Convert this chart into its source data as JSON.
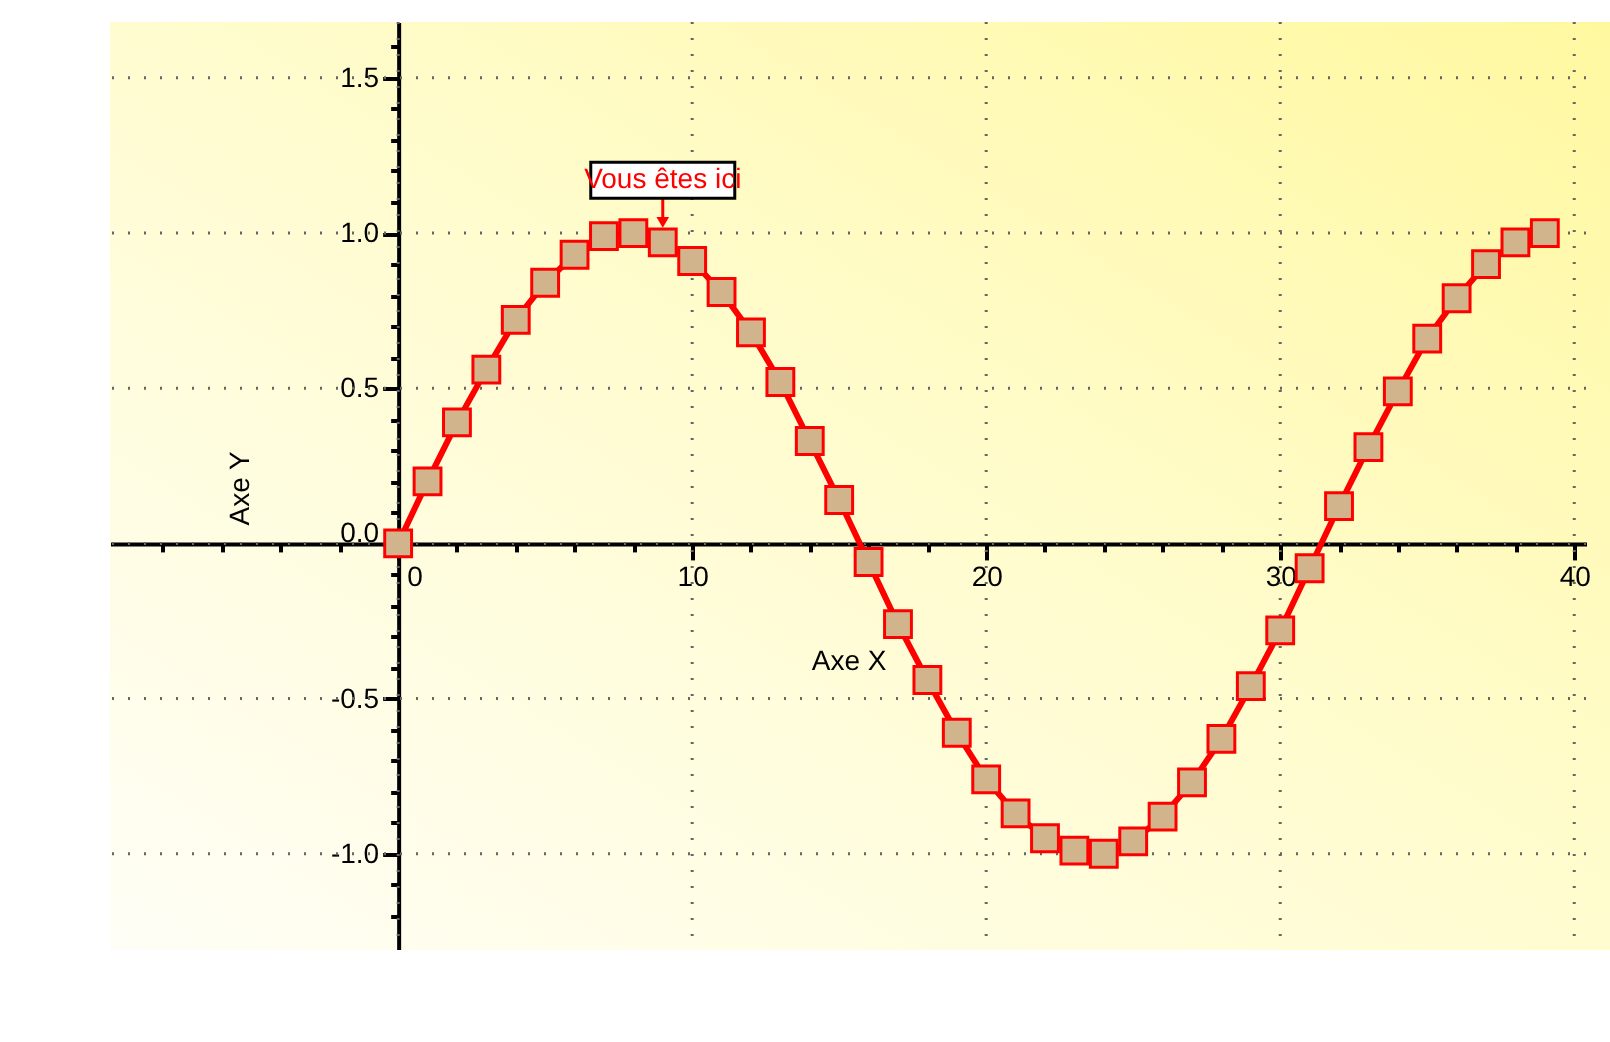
{
  "chart_data": {
    "type": "line",
    "xlabel": "Axe X",
    "ylabel": "Axe Y",
    "x": [
      0,
      1,
      2,
      3,
      4,
      5,
      6,
      7,
      8,
      9,
      10,
      11,
      12,
      13,
      14,
      15,
      16,
      17,
      18,
      19,
      20,
      21,
      22,
      23,
      24,
      25,
      26,
      27,
      28,
      29,
      30,
      31,
      32,
      33,
      34,
      35,
      36,
      37,
      38,
      39
    ],
    "series": [
      {
        "color": "#ff0000",
        "values": [
          0,
          0.2,
          0.39,
          0.56,
          0.72,
          0.84,
          0.93,
          0.99,
          1.0,
          0.97,
          0.91,
          0.81,
          0.68,
          0.52,
          0.33,
          0.14,
          -0.06,
          -0.26,
          -0.44,
          -0.61,
          -0.76,
          -0.87,
          -0.95,
          -0.99,
          -1.0,
          -0.96,
          -0.88,
          -0.77,
          -0.63,
          -0.46,
          -0.28,
          -0.08,
          0.12,
          0.31,
          0.49,
          0.66,
          0.79,
          0.9,
          0.97,
          1.0
        ]
      }
    ],
    "marker": "square",
    "xlim": [
      -9.8,
      40.4
    ],
    "ylim": [
      -1.31,
      1.68
    ],
    "xticks": [
      {
        "value": -8,
        "label": null
      },
      {
        "value": -6,
        "label": null
      },
      {
        "value": -4,
        "label": null
      },
      {
        "value": -2,
        "label": null
      },
      0,
      {
        "value": 2,
        "label": null
      },
      {
        "value": 4,
        "label": null
      },
      {
        "value": 6,
        "label": null
      },
      {
        "value": 8,
        "label": null
      },
      10,
      {
        "value": 12,
        "label": null
      },
      {
        "value": 14,
        "label": null
      },
      {
        "value": 16,
        "label": null
      },
      {
        "value": 18,
        "label": null
      },
      20,
      {
        "value": 22,
        "label": null
      },
      {
        "value": 24,
        "label": null
      },
      {
        "value": 26,
        "label": null
      },
      {
        "value": 28,
        "label": null
      },
      30,
      {
        "value": 32,
        "label": null
      },
      {
        "value": 34,
        "label": null
      },
      {
        "value": 36,
        "label": null
      },
      {
        "value": 38,
        "label": null
      },
      40
    ],
    "yticks": [
      {
        "value": -1.2,
        "label": null
      },
      {
        "value": -1.1,
        "label": null
      },
      {
        "value": -1,
        "label": "-1.0"
      },
      {
        "value": -0.9,
        "label": null
      },
      {
        "value": -0.8,
        "label": null
      },
      {
        "value": -0.7,
        "label": null
      },
      {
        "value": -0.6,
        "label": null
      },
      {
        "value": -0.5,
        "label": "-0.5"
      },
      {
        "value": -0.4,
        "label": null
      },
      {
        "value": -0.3,
        "label": null
      },
      {
        "value": -0.2,
        "label": null
      },
      {
        "value": -0.1,
        "label": null
      },
      {
        "value": 0,
        "label": "0.0"
      },
      {
        "value": 0.1,
        "label": null
      },
      {
        "value": 0.2,
        "label": null
      },
      {
        "value": 0.3,
        "label": null
      },
      {
        "value": 0.4,
        "label": null
      },
      {
        "value": 0.5,
        "label": "0.5"
      },
      {
        "value": 0.6,
        "label": null
      },
      {
        "value": 0.7,
        "label": null
      },
      {
        "value": 0.8,
        "label": null
      },
      {
        "value": 0.9,
        "label": null
      },
      {
        "value": 1,
        "label": "1.0"
      },
      {
        "value": 1.1,
        "label": null
      },
      {
        "value": 1.2,
        "label": null
      },
      {
        "value": 1.3,
        "label": null
      },
      {
        "value": 1.4,
        "label": null
      },
      {
        "value": 1.5,
        "label": "1.5"
      },
      {
        "value": 1.6,
        "label": null
      }
    ],
    "grid": true,
    "annotations": [
      {
        "text": "Vous êtes ici",
        "x": 9,
        "y": 0.97
      }
    ]
  }
}
